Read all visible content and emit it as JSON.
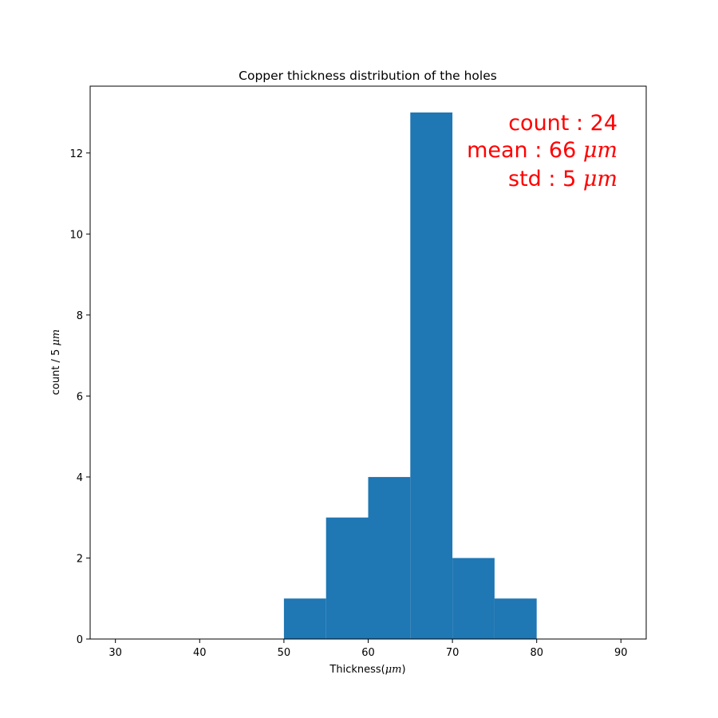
{
  "colors": {
    "bar": "#1f77b4",
    "annotation": "#ff0000",
    "axis": "#000000",
    "background": "#ffffff"
  },
  "chart_data": {
    "type": "bar",
    "title": "Copper thickness distribution of the holes",
    "xlabel": {
      "text": "Thickness(",
      "unit": "μm",
      "suffix": ")"
    },
    "ylabel": {
      "text": "count / 5 ",
      "unit": "μm"
    },
    "xlim": [
      27,
      93
    ],
    "ylim": [
      0,
      13.65
    ],
    "xticks": [
      30,
      40,
      50,
      60,
      70,
      80,
      90
    ],
    "yticks": [
      0,
      2,
      4,
      6,
      8,
      10,
      12
    ],
    "bin_width": 5,
    "bins": [
      {
        "x0": 50,
        "x1": 55,
        "count": 1
      },
      {
        "x0": 55,
        "x1": 60,
        "count": 3
      },
      {
        "x0": 60,
        "x1": 65,
        "count": 4
      },
      {
        "x0": 65,
        "x1": 70,
        "count": 13
      },
      {
        "x0": 70,
        "x1": 75,
        "count": 2
      },
      {
        "x0": 75,
        "x1": 80,
        "count": 1
      }
    ],
    "grid": false,
    "annotations": [
      {
        "text": "count : 24",
        "unit": ""
      },
      {
        "text": "mean : 66 ",
        "unit": "μm"
      },
      {
        "text": "std : 5 ",
        "unit": "μm"
      }
    ],
    "annotation_placement": "top-right"
  }
}
